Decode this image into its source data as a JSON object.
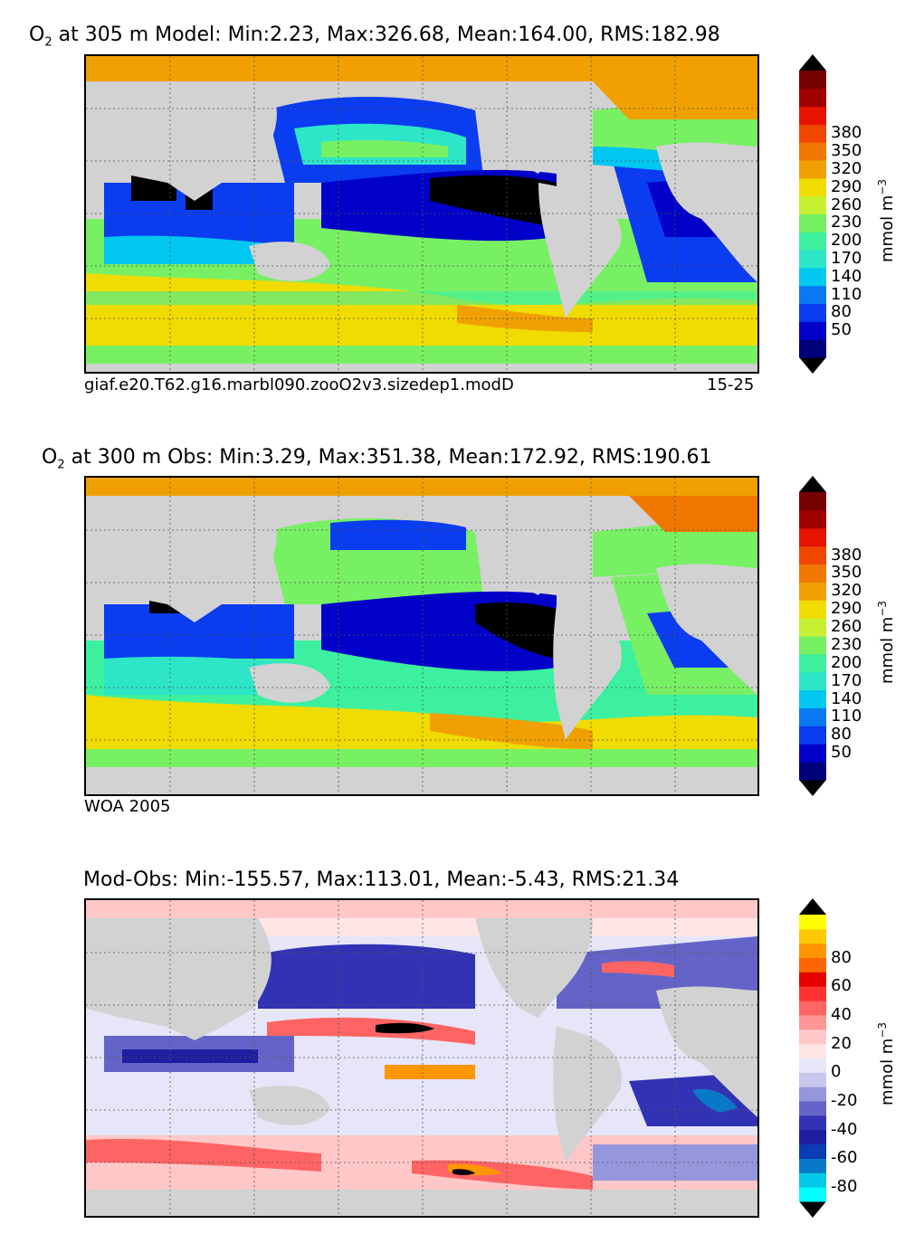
{
  "panels": [
    {
      "id": "model",
      "title_prefix": "O",
      "title_sub": "2",
      "title_rest": "  at 305 m Model: Min:2.23, Max:326.68, Mean:164.00, RMS:182.98",
      "caption_left": "giaf.e20.T62.g16.marbl090.zooO2v3.sizedep1.modD",
      "caption_right": "15-25",
      "colorbar": {
        "ticks": [
          "50",
          "80",
          "110",
          "140",
          "170",
          "200",
          "230",
          "260",
          "290",
          "320",
          "350",
          "380"
        ],
        "unit_base": "mmol m",
        "unit_sup": "−3"
      }
    },
    {
      "id": "obs",
      "title_prefix": "O",
      "title_sub": "2",
      "title_rest": "  at 300 m Obs: Min:3.29, Max:351.38, Mean:172.92, RMS:190.61",
      "caption_left": "WOA 2005",
      "caption_right": "",
      "colorbar": {
        "ticks": [
          "50",
          "80",
          "110",
          "140",
          "170",
          "200",
          "230",
          "260",
          "290",
          "320",
          "350",
          "380"
        ],
        "unit_base": "mmol m",
        "unit_sup": "−3"
      }
    },
    {
      "id": "diff",
      "title_prefix": "",
      "title_sub": "",
      "title_rest": "Mod-Obs: Min:-155.57, Max:113.01, Mean:-5.43, RMS:21.34",
      "caption_left": "",
      "caption_right": "",
      "colorbar": {
        "ticks": [
          "-80",
          "-60",
          "-40",
          "-20",
          "0",
          "20",
          "40",
          "60",
          "80"
        ],
        "unit_base": "mmol m",
        "unit_sup": "−3"
      }
    }
  ],
  "colors": {
    "land": "#d2d2d2",
    "o2_scale": [
      "#00007a",
      "#0000c8",
      "#0a3cf0",
      "#0a78f0",
      "#00c8f0",
      "#2de6c8",
      "#3cf0a0",
      "#78f064",
      "#c8f032",
      "#f0dc00",
      "#f0a000",
      "#f07800",
      "#f04600",
      "#e61400",
      "#a00000",
      "#780000"
    ],
    "diff_scale": [
      "#00ffff",
      "#00c8e6",
      "#0a78c8",
      "#0a3cb4",
      "#1e1ea0",
      "#3232b4",
      "#6464c8",
      "#9696dc",
      "#c8c8ee",
      "#e6e6f8",
      "#ffe6e6",
      "#ffc8c8",
      "#ff9696",
      "#ff6464",
      "#ff3232",
      "#e60000",
      "#ff6400",
      "#ff9600",
      "#ffc800",
      "#ffff00"
    ]
  }
}
